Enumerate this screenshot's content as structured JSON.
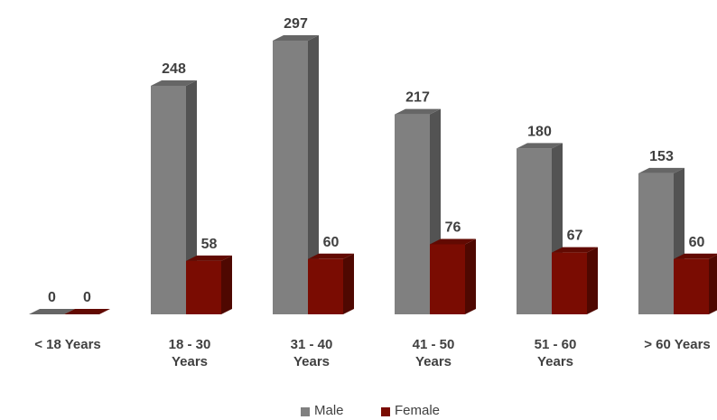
{
  "chart_data": {
    "type": "bar3d",
    "categories": [
      "< 18 Years",
      "18 - 30 Years",
      "31 - 40 Years",
      "41 - 50 Years",
      "51 - 60 Years",
      "> 60 Years"
    ],
    "series": [
      {
        "name": "Male",
        "color": "#808080",
        "values": [
          0,
          248,
          297,
          217,
          180,
          153
        ]
      },
      {
        "name": "Female",
        "color": "#7a0c02",
        "values": [
          0,
          58,
          60,
          76,
          67,
          60
        ]
      }
    ]
  }
}
